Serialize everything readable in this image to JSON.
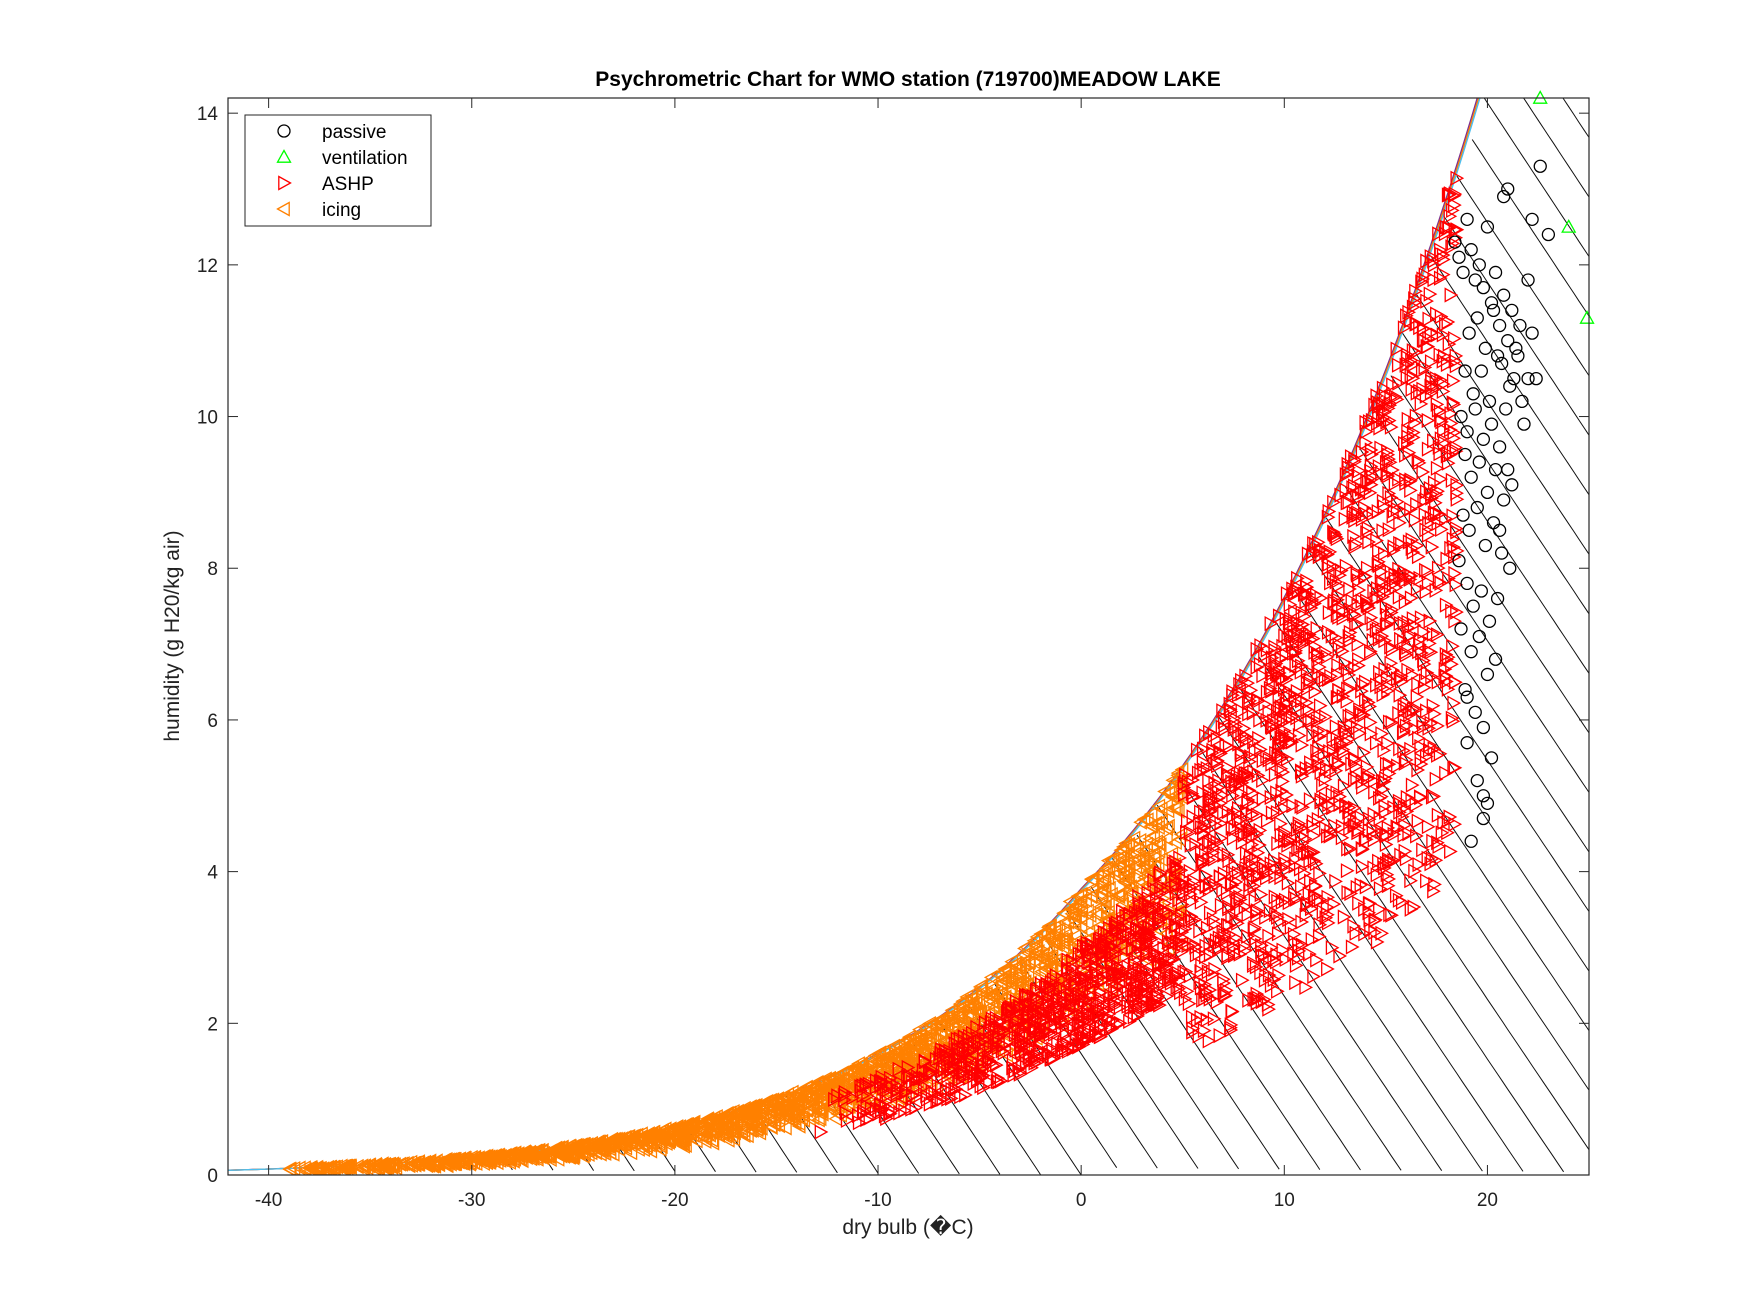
{
  "chart_data": {
    "type": "scatter",
    "title": "Psychrometric Chart for WMO station (719700)MEADOW LAKE",
    "xlabel": "dry bulb (�C)",
    "ylabel": "humidity (g H20/kg air)",
    "xlim": [
      -42,
      25
    ],
    "ylim": [
      0,
      14.2
    ],
    "xticks": [
      -40,
      -30,
      -20,
      -10,
      0,
      10,
      20
    ],
    "yticks": [
      0,
      2,
      4,
      6,
      8,
      10,
      12,
      14
    ],
    "grid": false,
    "legend_position": "top-left",
    "saturation_curve": "saturation humidity (100% RH) curve in g/kg vs dry bulb",
    "enthalpy_lines": "diagonal constant-enthalpy hatch lines below saturation",
    "series": [
      {
        "name": "passive",
        "marker": "circle",
        "color": "#000000",
        "x": [
          18.4,
          18.6,
          18.8,
          19.0,
          19.2,
          19.4,
          19.6,
          19.8,
          20.0,
          20.2,
          20.4,
          20.6,
          20.8,
          21.0,
          21.2,
          21.4,
          21.6,
          22.0,
          22.2,
          22.4,
          19.1,
          19.5,
          19.9,
          20.3,
          20.7,
          21.1,
          21.5,
          18.9,
          19.3,
          19.7,
          20.1,
          20.5,
          20.9,
          21.3,
          21.7,
          18.7,
          19.0,
          19.4,
          19.8,
          20.2,
          20.6,
          21.0,
          18.9,
          19.2,
          19.6,
          20.0,
          20.4,
          20.8,
          21.2,
          18.8,
          19.1,
          19.5,
          19.9,
          20.3,
          20.7,
          21.1,
          18.6,
          19.0,
          19.3,
          19.7,
          20.1,
          20.5,
          18.7,
          19.2,
          19.6,
          20.0,
          20.4,
          18.9,
          19.4,
          19.8,
          20.2,
          19.0,
          19.5,
          20.0,
          19.2,
          19.8,
          20.8,
          21.0,
          22.2,
          22.6,
          23.0,
          22.0,
          21.8,
          20.6,
          19.8,
          19.0
        ],
        "y": [
          12.3,
          12.1,
          11.9,
          12.6,
          12.2,
          11.8,
          12.0,
          11.7,
          12.5,
          11.5,
          11.9,
          11.2,
          11.6,
          11.0,
          11.4,
          10.9,
          11.2,
          11.8,
          11.1,
          10.5,
          11.1,
          11.3,
          10.9,
          11.4,
          10.7,
          10.4,
          10.8,
          10.6,
          10.3,
          10.6,
          10.2,
          10.8,
          10.1,
          10.5,
          10.2,
          10.0,
          9.8,
          10.1,
          9.7,
          9.9,
          9.6,
          9.3,
          9.5,
          9.2,
          9.4,
          9.0,
          9.3,
          8.9,
          9.1,
          8.7,
          8.5,
          8.8,
          8.3,
          8.6,
          8.2,
          8.0,
          8.1,
          7.8,
          7.5,
          7.7,
          7.3,
          7.6,
          7.2,
          6.9,
          7.1,
          6.6,
          6.8,
          6.4,
          6.1,
          5.9,
          5.5,
          5.7,
          5.2,
          4.9,
          4.4,
          5.0,
          12.9,
          13.0,
          12.6,
          13.3,
          12.4,
          10.5,
          9.9,
          8.5,
          4.7,
          6.3
        ],
        "note": "representative sample of the visible markers"
      },
      {
        "name": "ventilation",
        "marker": "triangle-up",
        "color": "#00ff00",
        "x": [
          22.6,
          24.0,
          24.9
        ],
        "y": [
          14.2,
          12.5,
          11.3
        ]
      },
      {
        "name": "ASHP",
        "marker": "triangle-right",
        "color": "#ff0000",
        "region": "dense cloud between saturation curve and lower bound, from about -13 to 18.5 °C",
        "x_range": [
          -13,
          18.5
        ],
        "y_range": [
          0.6,
          12.0
        ]
      },
      {
        "name": "icing",
        "marker": "triangle-left",
        "color": "#ff8000",
        "region": "dense cloud along the saturation curve from about -39 to 5 °C",
        "x_range": [
          -39,
          5
        ],
        "y_range": [
          0.0,
          5.4
        ]
      }
    ],
    "saturation_line_colors": [
      "#7e2f8e",
      "#ff8000",
      "#4dbeee"
    ]
  }
}
